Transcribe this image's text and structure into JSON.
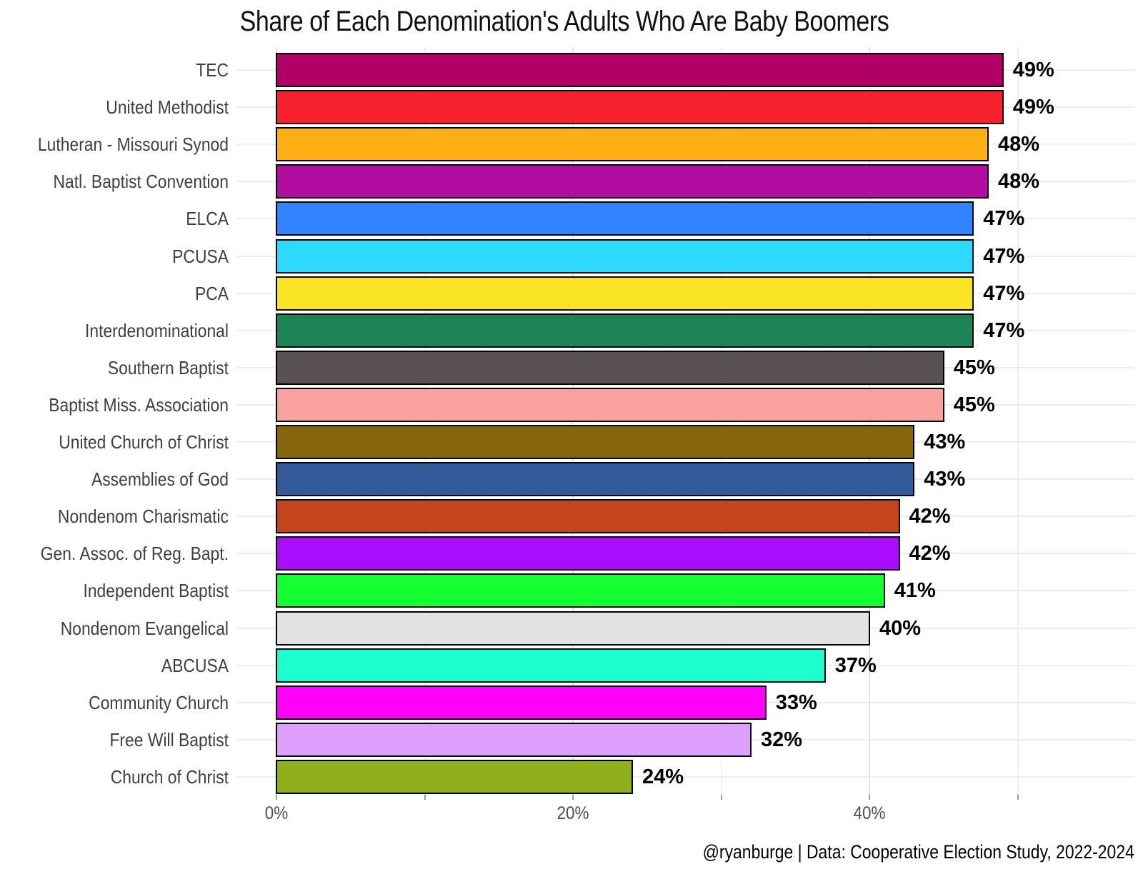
{
  "chart_data": {
    "type": "bar",
    "orientation": "horizontal",
    "title": "Share of Each Denomination's Adults Who Are Baby Boomers",
    "caption": "@ryanburge | Data: Cooperative Election Study, 2022-2024",
    "xlabel": "",
    "ylabel": "",
    "legend": "none",
    "grid": true,
    "x_axis": {
      "tick_labels": [
        "0%",
        "20%",
        "40%"
      ],
      "tick_values": [
        0,
        20,
        40
      ],
      "minor_tick_values": [
        10,
        30,
        50
      ],
      "range": [
        0,
        58
      ]
    },
    "categories": [
      "TEC",
      "United Methodist",
      "Lutheran - Missouri Synod",
      "Natl. Baptist Convention",
      "ELCA",
      "PCUSA",
      "PCA",
      "Interdenominational",
      "Southern Baptist",
      "Baptist Miss. Association",
      "United Church of Christ",
      "Assemblies of God",
      "Nondenom Charismatic",
      "Gen. Assoc. of Reg. Bapt.",
      "Independent Baptist",
      "Nondenom Evangelical",
      "ABCUSA",
      "Community Church",
      "Free Will Baptist",
      "Church of Christ"
    ],
    "values": [
      49,
      49,
      48,
      48,
      47,
      47,
      47,
      47,
      45,
      45,
      43,
      43,
      42,
      42,
      41,
      40,
      37,
      33,
      32,
      24
    ],
    "value_labels": [
      "49%",
      "49%",
      "48%",
      "48%",
      "47%",
      "47%",
      "47%",
      "47%",
      "45%",
      "45%",
      "43%",
      "43%",
      "42%",
      "42%",
      "41%",
      "40%",
      "37%",
      "33%",
      "32%",
      "24%"
    ],
    "bar_colors": [
      "#B00068",
      "#F6222E",
      "#FEAF16",
      "#B10DA1",
      "#3283FE",
      "#2ED9FF",
      "#FBE426",
      "#1C8356",
      "#5A5156",
      "#F8A19F",
      "#85660D",
      "#325A9B",
      "#C4451C",
      "#AA0DFE",
      "#16FF32",
      "#E4E1E3",
      "#1CFFCE",
      "#FE00FA",
      "#DEA0FD",
      "#90AD1C"
    ],
    "bar_outline_color": "#000000",
    "colors": {
      "background": "#ffffff",
      "grid_major": "#e4e4e4",
      "grid_minor": "#f0f0f0",
      "category_grid": "#ececec",
      "axis_tick": "#999999",
      "y_label": "#3f3f3f",
      "x_tick_label": "#4d4d4d",
      "value_label": "#000000",
      "title": "#111111"
    }
  }
}
